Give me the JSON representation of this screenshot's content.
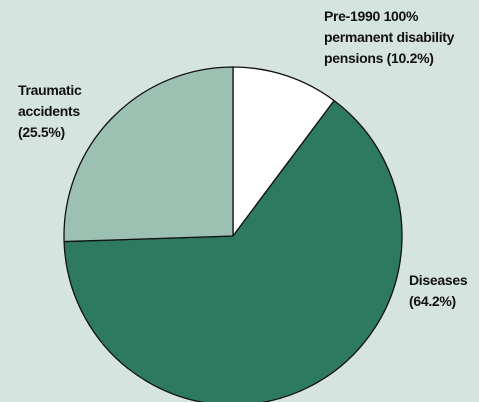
{
  "chart_data": {
    "type": "pie",
    "categories": [
      "Pre-1990 100% permanent disability pensions",
      "Diseases",
      "Traumatic accidents"
    ],
    "values": [
      10.2,
      64.2,
      25.5
    ],
    "value_labels": [
      "(10.2%)",
      "(64.2%)",
      "(25.5%)"
    ],
    "colors": [
      "#ffffff",
      "#2e7a60",
      "#9cc1b3"
    ],
    "start_angle": 0,
    "direction": "clockwise"
  }
}
